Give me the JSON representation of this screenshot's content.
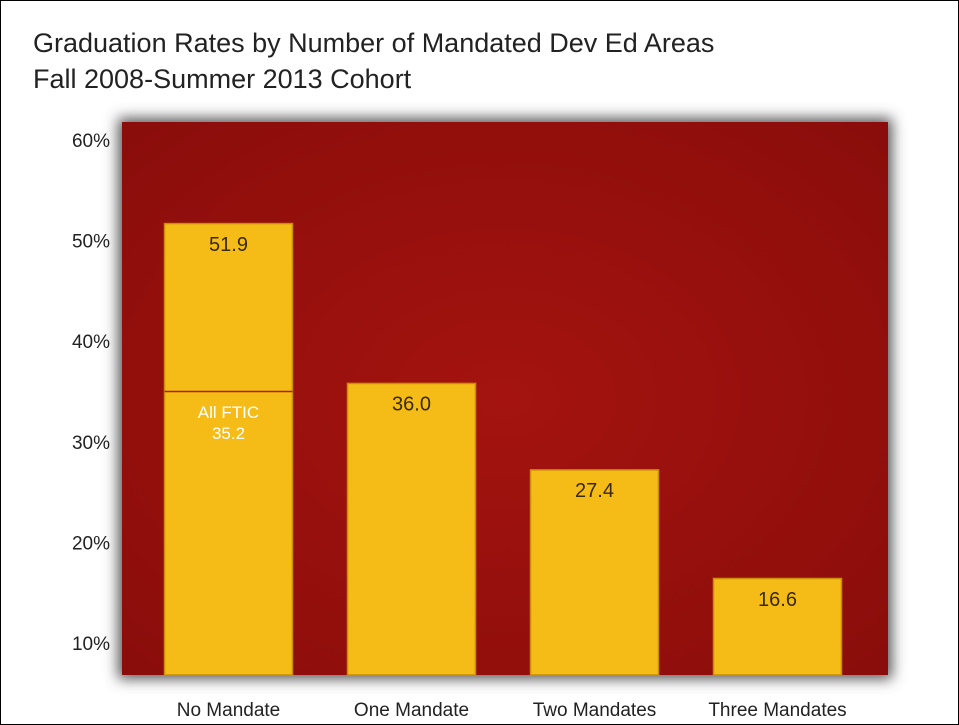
{
  "chart_data": {
    "type": "bar",
    "title": [
      "Graduation Rates by Number of Mandated Dev Ed Areas",
      "Fall 2008-Summer 2013 Cohort"
    ],
    "categories": [
      "No Mandate",
      "One Mandate",
      "Two Mandates",
      "Three Mandates"
    ],
    "values": [
      51.9,
      36.0,
      27.4,
      16.6
    ],
    "value_labels": [
      "51.9",
      "36.0",
      "27.4",
      "16.6"
    ],
    "color": "#f5bb16",
    "ylim": [
      7,
      62
    ],
    "yticks": [
      {
        "value": 10,
        "label": "10%"
      },
      {
        "value": 20,
        "label": "20%"
      },
      {
        "value": 30,
        "label": "30%"
      },
      {
        "value": 40,
        "label": "40%"
      },
      {
        "value": 50,
        "label": "50%"
      },
      {
        "value": 60,
        "label": "60%"
      }
    ],
    "annotation": {
      "label": "All FTIC",
      "value": 35.2,
      "value_label": "35.2"
    }
  }
}
